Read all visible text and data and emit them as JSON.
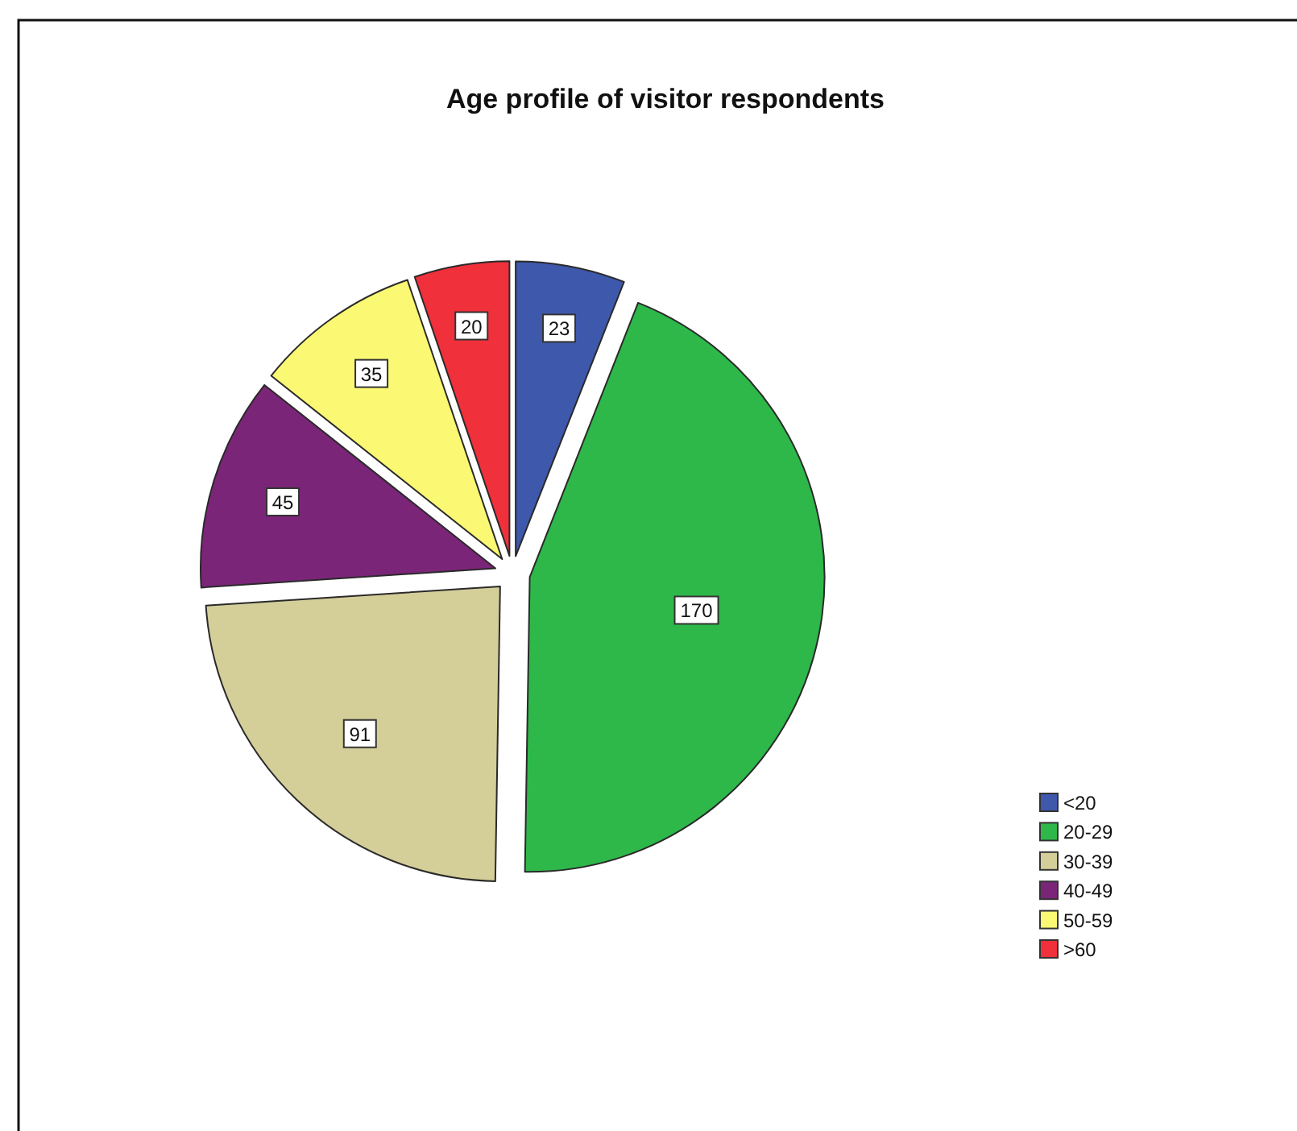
{
  "chart_data": {
    "type": "pie",
    "title": "Age profile of visitor respondents",
    "categories": [
      "<20",
      "20-29",
      "30-39",
      "40-49",
      "50-59",
      ">60"
    ],
    "values": [
      23,
      170,
      91,
      45,
      35,
      20
    ],
    "colors": [
      "#3e58ac",
      "#2eb84a",
      "#d4ce99",
      "#7b2579",
      "#fbf873",
      "#f0303a"
    ],
    "data_labels": true,
    "legend": "right"
  }
}
